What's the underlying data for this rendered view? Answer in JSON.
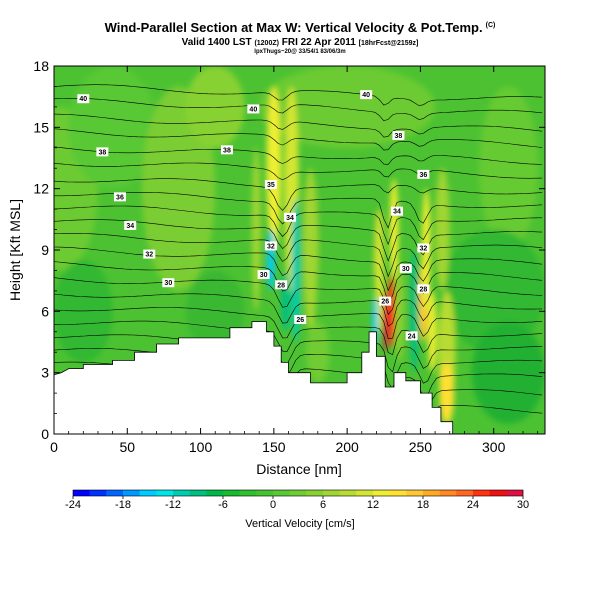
{
  "header": {
    "title": "Wind-Parallel Section at Max W: Vertical Velocity & Pot.Temp.",
    "copyright": "(C)",
    "valid_prefix": "Valid 1400 LST",
    "valid_utc": "(1200Z)",
    "valid_suffix": "FRI 22 Apr 2011",
    "forecast": "[18hrFcst@2159z]",
    "endpoints": "lpxThugs~20@ 33/54/1 83/06/3m"
  },
  "colorbar_label": "Vertical Velocity [cm/s]",
  "chart_data": {
    "type": "heatmap",
    "xlabel": "Distance [nm]",
    "ylabel": "Height [Kft MSL]",
    "xlim": [
      0,
      335
    ],
    "ylim": [
      0,
      18
    ],
    "x_ticks": [
      "0",
      "50",
      "100",
      "150",
      "200",
      "250",
      "300"
    ],
    "y_ticks": [
      "0",
      "3",
      "6",
      "9",
      "12",
      "15",
      "18"
    ],
    "colorbar": {
      "ticks": [
        "-24",
        "-18",
        "-12",
        "-6",
        "0",
        "6",
        "12",
        "18",
        "24",
        "30"
      ],
      "min": -24,
      "max": 30,
      "step": 2,
      "colors": [
        "#0000ff",
        "#0033ff",
        "#0066ff",
        "#0099ff",
        "#00ccff",
        "#00e5e5",
        "#00ccb0",
        "#00c080",
        "#00b84a",
        "#18bb30",
        "#30c030",
        "#44c433",
        "#58c835",
        "#70cc33",
        "#88d133",
        "#a0d633",
        "#b8dc33",
        "#d4e633",
        "#eeee33",
        "#ffe033",
        "#ffc833",
        "#ffaa22",
        "#ff8822",
        "#ff6622",
        "#ff3311",
        "#ee1111",
        "#dd1144"
      ]
    },
    "isentrope_labels": [
      {
        "text": "40",
        "x": 20,
        "y": 16.4
      },
      {
        "text": "40",
        "x": 136,
        "y": 15.9
      },
      {
        "text": "40",
        "x": 213,
        "y": 16.6
      },
      {
        "text": "38",
        "x": 235,
        "y": 14.6
      },
      {
        "text": "38",
        "x": 33,
        "y": 13.8
      },
      {
        "text": "38",
        "x": 118,
        "y": 13.9
      },
      {
        "text": "36",
        "x": 252,
        "y": 12.7
      },
      {
        "text": "35",
        "x": 148,
        "y": 12.2
      },
      {
        "text": "36",
        "x": 45,
        "y": 11.6
      },
      {
        "text": "34",
        "x": 161,
        "y": 10.6
      },
      {
        "text": "34",
        "x": 52,
        "y": 10.2
      },
      {
        "text": "34",
        "x": 234,
        "y": 10.9
      },
      {
        "text": "32",
        "x": 148,
        "y": 9.2
      },
      {
        "text": "32",
        "x": 65,
        "y": 8.8
      },
      {
        "text": "32",
        "x": 252,
        "y": 9.1
      },
      {
        "text": "30",
        "x": 143,
        "y": 7.8
      },
      {
        "text": "30",
        "x": 78,
        "y": 7.4
      },
      {
        "text": "30",
        "x": 240,
        "y": 8.1
      },
      {
        "text": "28",
        "x": 155,
        "y": 7.3
      },
      {
        "text": "28",
        "x": 252,
        "y": 7.1
      },
      {
        "text": "26",
        "x": 168,
        "y": 5.6
      },
      {
        "text": "26",
        "x": 226,
        "y": 6.5
      },
      {
        "text": "24",
        "x": 244,
        "y": 4.8
      }
    ]
  }
}
